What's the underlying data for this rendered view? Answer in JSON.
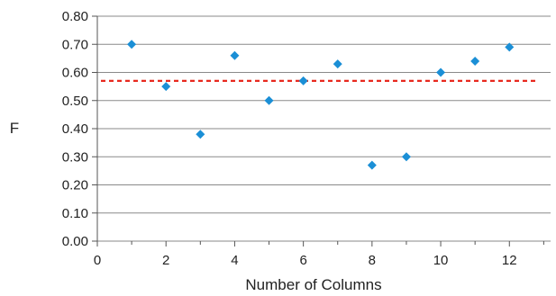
{
  "chart_data": {
    "type": "scatter",
    "xlabel": "Number of Columns",
    "ylabel": "F",
    "xlim": [
      0,
      13.2
    ],
    "ylim": [
      0,
      0.8
    ],
    "x_ticks": [
      0,
      2,
      4,
      6,
      8,
      10,
      12
    ],
    "y_ticks": [
      0.0,
      0.1,
      0.2,
      0.3,
      0.4,
      0.5,
      0.6,
      0.7,
      0.8
    ],
    "x_tick_labels": [
      "0",
      "2",
      "4",
      "6",
      "8",
      "10",
      "12"
    ],
    "y_tick_labels": [
      "0.00",
      "0.10",
      "0.20",
      "0.30",
      "0.40",
      "0.50",
      "0.60",
      "0.70",
      "0.80"
    ],
    "grid": "horizontal",
    "series": [
      {
        "x": [
          1,
          2,
          3,
          4,
          5,
          6,
          7,
          8,
          9,
          10,
          11,
          12
        ],
        "y": [
          0.7,
          0.55,
          0.38,
          0.66,
          0.5,
          0.57,
          0.63,
          0.27,
          0.3,
          0.6,
          0.64,
          0.69
        ],
        "marker": "diamond",
        "color": "#1b8fd6"
      }
    ],
    "reference_line": {
      "y": 0.57,
      "style": "dashed",
      "color": "#e8281e"
    }
  }
}
